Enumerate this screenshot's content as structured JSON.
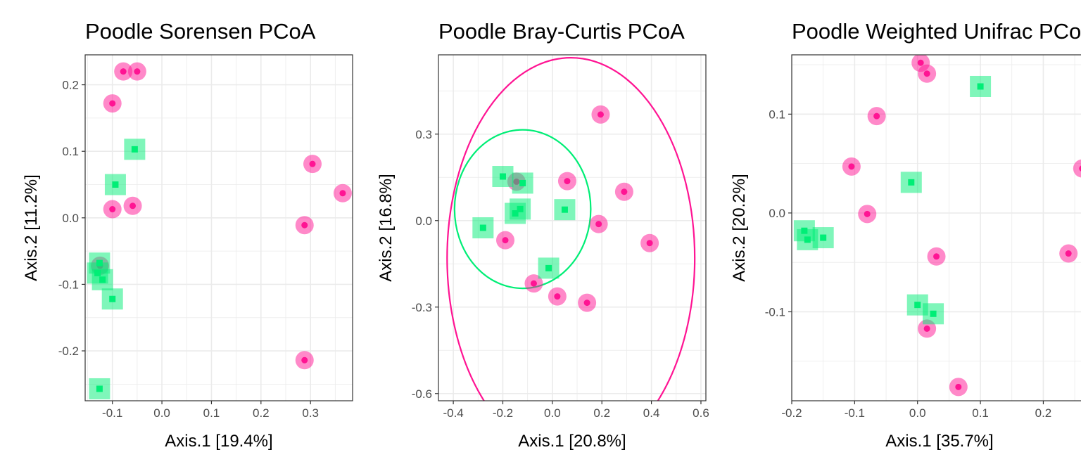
{
  "colors": {
    "group_a": "#ff1493",
    "group_b": "#00ee76",
    "grid": "#ebebeb",
    "border": "#333333"
  },
  "chart_data": [
    {
      "type": "scatter",
      "title": "Poodle Sorensen PCoA",
      "xlabel": "Axis.1   [19.4%]",
      "ylabel": "Axis.2   [11.2%]",
      "xlim": [
        -0.155,
        0.385
      ],
      "ylim": [
        -0.275,
        0.245
      ],
      "xticks": [
        -0.1,
        0.0,
        0.1,
        0.2,
        0.3
      ],
      "xtick_labels": [
        "-0.1",
        "0.0",
        "0.1",
        "0.2",
        "0.3"
      ],
      "yticks": [
        -0.2,
        -0.1,
        0.0,
        0.1,
        0.2
      ],
      "ytick_labels": [
        "-0.2",
        "-0.1",
        "0.0",
        "0.1",
        "0.2"
      ],
      "grid": true,
      "ellipses": [],
      "series": [
        {
          "color": "#ff1493",
          "marker": "circle",
          "points": [
            [
              -0.078,
              0.22
            ],
            [
              -0.05,
              0.22
            ],
            [
              -0.1,
              0.172
            ],
            [
              -0.1,
              0.013
            ],
            [
              -0.059,
              0.018
            ],
            [
              0.304,
              0.081
            ],
            [
              0.365,
              0.037
            ],
            [
              0.288,
              -0.011
            ],
            [
              0.288,
              -0.214
            ],
            [
              -0.125,
              -0.072
            ]
          ]
        },
        {
          "color": "#00ee76",
          "marker": "square",
          "points": [
            [
              -0.055,
              0.103
            ],
            [
              -0.094,
              0.05
            ],
            [
              -0.126,
              -0.068
            ],
            [
              -0.13,
              -0.083
            ],
            [
              -0.12,
              -0.093
            ],
            [
              -0.1,
              -0.122
            ],
            [
              -0.126,
              -0.257
            ]
          ]
        }
      ]
    },
    {
      "type": "scatter",
      "title": "Poodle Bray-Curtis PCoA",
      "xlabel": "Axis.1   [20.8%]",
      "ylabel": "Axis.2   [16.8%]",
      "xlim": [
        -0.46,
        0.62
      ],
      "ylim": [
        -0.625,
        0.575
      ],
      "xticks": [
        -0.4,
        -0.2,
        0.0,
        0.2,
        0.4,
        0.6
      ],
      "xtick_labels": [
        "-0.4",
        "-0.2",
        "0.0",
        "0.2",
        "0.4",
        "0.6"
      ],
      "yticks": [
        -0.6,
        -0.3,
        0.0,
        0.3
      ],
      "ytick_labels": [
        "-0.6",
        "-0.3",
        "0.0",
        "0.3"
      ],
      "grid": true,
      "ellipses": [
        {
          "color": "#ff1493",
          "cx": 0.075,
          "cy": -0.13,
          "rx": 0.5,
          "ry": 0.695
        },
        {
          "color": "#00ee76",
          "cx": -0.12,
          "cy": 0.04,
          "rx": 0.275,
          "ry": 0.275
        }
      ],
      "series": [
        {
          "color": "#ff1493",
          "marker": "circle",
          "points": [
            [
              0.195,
              0.368
            ],
            [
              0.06,
              0.137
            ],
            [
              0.29,
              0.1
            ],
            [
              0.187,
              -0.012
            ],
            [
              0.393,
              -0.078
            ],
            [
              -0.19,
              -0.068
            ],
            [
              -0.145,
              0.135
            ],
            [
              -0.075,
              -0.218
            ],
            [
              0.02,
              -0.263
            ],
            [
              0.14,
              -0.285
            ]
          ]
        },
        {
          "color": "#00ee76",
          "marker": "square",
          "points": [
            [
              -0.2,
              0.153
            ],
            [
              -0.12,
              0.13
            ],
            [
              -0.13,
              0.04
            ],
            [
              -0.15,
              0.025
            ],
            [
              0.05,
              0.038
            ],
            [
              -0.28,
              -0.025
            ],
            [
              -0.015,
              -0.165
            ]
          ]
        }
      ]
    },
    {
      "type": "scatter",
      "title": "Poodle Weighted Unifrac PCoA",
      "xlabel": "Axis.1   [35.7%]",
      "ylabel": "Axis.2   [20.2%]",
      "xlim": [
        -0.2,
        0.27
      ],
      "ylim": [
        -0.19,
        0.16
      ],
      "xticks": [
        -0.2,
        -0.1,
        0.0,
        0.1,
        0.2
      ],
      "xtick_labels": [
        "-0.2",
        "-0.1",
        "0.0",
        "0.1",
        "0.2"
      ],
      "yticks": [
        -0.1,
        0.0,
        0.1
      ],
      "ytick_labels": [
        "-0.1",
        "0.0",
        "0.1"
      ],
      "grid": true,
      "ellipses": [],
      "series": [
        {
          "color": "#ff1493",
          "marker": "circle",
          "points": [
            [
              0.005,
              0.152
            ],
            [
              0.015,
              0.141
            ],
            [
              -0.065,
              0.098
            ],
            [
              -0.105,
              0.047
            ],
            [
              -0.08,
              -0.001
            ],
            [
              0.262,
              0.045
            ],
            [
              0.24,
              -0.041
            ],
            [
              0.03,
              -0.044
            ],
            [
              0.015,
              -0.117
            ],
            [
              0.065,
              -0.176
            ]
          ]
        },
        {
          "color": "#00ee76",
          "marker": "square",
          "points": [
            [
              0.1,
              0.128
            ],
            [
              -0.01,
              0.031
            ],
            [
              -0.18,
              -0.018
            ],
            [
              -0.175,
              -0.027
            ],
            [
              -0.15,
              -0.025
            ],
            [
              0.0,
              -0.093
            ],
            [
              0.025,
              -0.102
            ]
          ]
        }
      ]
    }
  ]
}
